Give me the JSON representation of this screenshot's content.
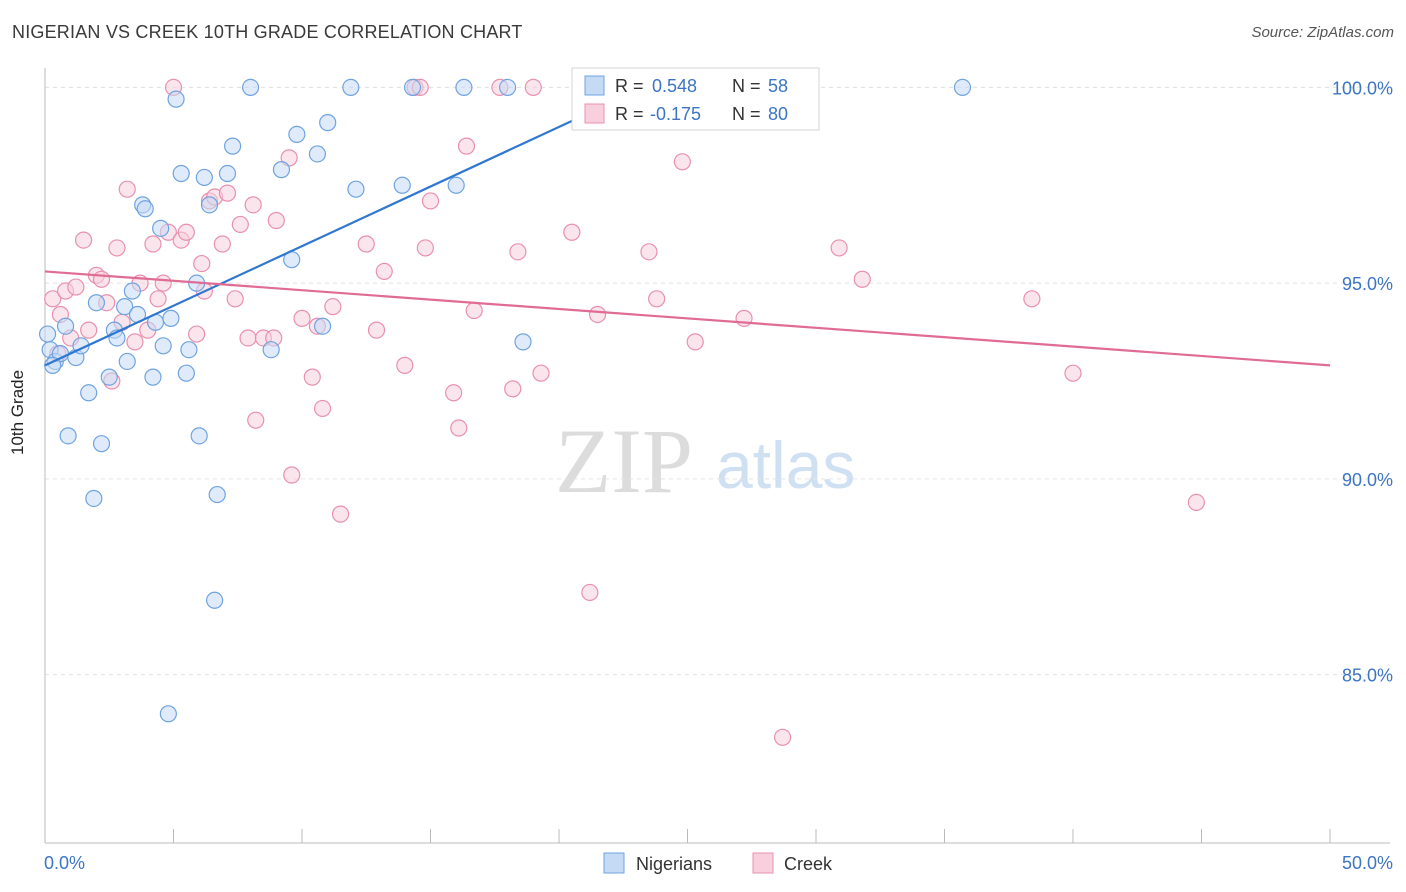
{
  "title": "NIGERIAN VS CREEK 10TH GRADE CORRELATION CHART",
  "source": "Source: ZipAtlas.com",
  "watermark": {
    "zip": "ZIP",
    "atlas": "atlas"
  },
  "colors": {
    "blue": "#6fa3e0",
    "blue_fill": "#c5dbf5",
    "blue_line": "#2f77d0",
    "pink": "#e890b0",
    "pink_fill": "#f7cfdd",
    "pink_line": "#e06b94",
    "axis_text": "#3c75c4",
    "grid": "#e3e3e3"
  },
  "legend": [
    {
      "r_label": "R =",
      "r_value": "0.548",
      "n_label": "N =",
      "n_value": "58"
    },
    {
      "r_label": "R =",
      "r_value": "-0.175",
      "n_label": "N =",
      "n_value": "80"
    }
  ],
  "bottom_legend": [
    "Nigerians",
    "Creek"
  ],
  "chart_data": {
    "type": "scatter",
    "title": "NIGERIAN VS CREEK 10TH GRADE CORRELATION CHART",
    "xlabel": "",
    "ylabel": "10th Grade",
    "xlim": [
      0,
      50
    ],
    "ylim": [
      80.7,
      100.7
    ],
    "x_tick_labels": [
      "0.0%",
      "50.0%"
    ],
    "y_ticks": [
      85,
      90,
      95,
      100
    ],
    "y_tick_labels": [
      "85.0%",
      "90.0%",
      "95.0%",
      "100.0%"
    ],
    "grid": "horizontal dashed",
    "legend_position": "top-center",
    "series": [
      {
        "name": "Nigerians",
        "trend": {
          "x": [
            0.0,
            24.3
          ],
          "y": [
            92.9,
            100.3
          ]
        },
        "points": [
          [
            0.2,
            93.3
          ],
          [
            0.4,
            93.0
          ],
          [
            0.6,
            93.2
          ],
          [
            0.8,
            93.9
          ],
          [
            0.9,
            91.1
          ],
          [
            1.2,
            93.1
          ],
          [
            1.4,
            93.4
          ],
          [
            1.7,
            92.2
          ],
          [
            1.9,
            89.5
          ],
          [
            2.0,
            94.5
          ],
          [
            2.2,
            90.9
          ],
          [
            2.5,
            92.6
          ],
          [
            2.7,
            93.8
          ],
          [
            2.8,
            93.6
          ],
          [
            3.1,
            94.4
          ],
          [
            3.2,
            93.0
          ],
          [
            3.4,
            94.8
          ],
          [
            3.6,
            94.2
          ],
          [
            3.8,
            97.0
          ],
          [
            3.9,
            96.9
          ],
          [
            4.2,
            92.6
          ],
          [
            4.3,
            94.0
          ],
          [
            4.5,
            96.4
          ],
          [
            4.6,
            93.4
          ],
          [
            4.8,
            84.0
          ],
          [
            4.9,
            94.1
          ],
          [
            5.1,
            99.7
          ],
          [
            5.3,
            97.8
          ],
          [
            5.5,
            92.7
          ],
          [
            5.6,
            93.3
          ],
          [
            5.9,
            95.0
          ],
          [
            6.0,
            91.1
          ],
          [
            6.2,
            97.7
          ],
          [
            6.4,
            97.0
          ],
          [
            6.6,
            86.9
          ],
          [
            6.7,
            89.6
          ],
          [
            7.1,
            97.8
          ],
          [
            7.3,
            98.5
          ],
          [
            8.0,
            100.0
          ],
          [
            8.8,
            93.3
          ],
          [
            9.2,
            97.9
          ],
          [
            9.6,
            95.6
          ],
          [
            9.8,
            98.8
          ],
          [
            10.6,
            98.3
          ],
          [
            10.8,
            93.9
          ],
          [
            11.0,
            99.1
          ],
          [
            11.9,
            100.0
          ],
          [
            12.1,
            97.4
          ],
          [
            13.9,
            97.5
          ],
          [
            14.3,
            100.0
          ],
          [
            16.0,
            97.5
          ],
          [
            16.3,
            100.0
          ],
          [
            18.0,
            100.0
          ],
          [
            18.6,
            93.5
          ],
          [
            24.5,
            100.0
          ],
          [
            35.7,
            100.0
          ],
          [
            0.1,
            93.7
          ],
          [
            0.3,
            92.9
          ]
        ]
      },
      {
        "name": "Creek",
        "trend": {
          "x": [
            0.0,
            50.0
          ],
          "y": [
            95.3,
            92.9
          ]
        },
        "points": [
          [
            0.3,
            94.6
          ],
          [
            0.5,
            93.2
          ],
          [
            0.6,
            94.2
          ],
          [
            0.8,
            94.8
          ],
          [
            1.0,
            93.6
          ],
          [
            1.2,
            94.9
          ],
          [
            1.5,
            96.1
          ],
          [
            1.7,
            93.8
          ],
          [
            2.0,
            95.2
          ],
          [
            2.2,
            95.1
          ],
          [
            2.4,
            94.5
          ],
          [
            2.6,
            92.5
          ],
          [
            2.8,
            95.9
          ],
          [
            3.0,
            94.0
          ],
          [
            3.2,
            97.4
          ],
          [
            3.5,
            93.5
          ],
          [
            3.7,
            95.0
          ],
          [
            4.0,
            93.8
          ],
          [
            4.2,
            96.0
          ],
          [
            4.4,
            94.6
          ],
          [
            4.6,
            95.0
          ],
          [
            4.8,
            96.3
          ],
          [
            5.0,
            100.0
          ],
          [
            5.3,
            96.1
          ],
          [
            5.5,
            96.3
          ],
          [
            5.9,
            93.7
          ],
          [
            6.1,
            95.5
          ],
          [
            6.2,
            94.8
          ],
          [
            6.4,
            97.1
          ],
          [
            6.6,
            97.2
          ],
          [
            6.9,
            96.0
          ],
          [
            7.1,
            97.3
          ],
          [
            7.4,
            94.6
          ],
          [
            7.6,
            96.5
          ],
          [
            7.9,
            93.6
          ],
          [
            8.1,
            97.0
          ],
          [
            8.2,
            91.5
          ],
          [
            8.5,
            93.6
          ],
          [
            8.9,
            93.6
          ],
          [
            9.0,
            96.6
          ],
          [
            9.5,
            98.2
          ],
          [
            9.6,
            90.1
          ],
          [
            10.0,
            94.1
          ],
          [
            10.4,
            92.6
          ],
          [
            10.6,
            93.9
          ],
          [
            10.8,
            91.8
          ],
          [
            11.2,
            94.4
          ],
          [
            11.5,
            89.1
          ],
          [
            12.5,
            96.0
          ],
          [
            12.9,
            93.8
          ],
          [
            13.2,
            95.3
          ],
          [
            14.0,
            92.9
          ],
          [
            14.4,
            100.0
          ],
          [
            14.8,
            95.9
          ],
          [
            15.0,
            97.1
          ],
          [
            15.9,
            92.2
          ],
          [
            16.1,
            91.3
          ],
          [
            16.4,
            98.5
          ],
          [
            16.7,
            94.3
          ],
          [
            18.2,
            92.3
          ],
          [
            18.4,
            95.8
          ],
          [
            19.0,
            100.0
          ],
          [
            19.3,
            92.7
          ],
          [
            20.5,
            96.3
          ],
          [
            21.2,
            87.1
          ],
          [
            21.5,
            94.2
          ],
          [
            23.5,
            95.8
          ],
          [
            23.8,
            94.6
          ],
          [
            24.6,
            100.0
          ],
          [
            24.8,
            98.1
          ],
          [
            25.3,
            93.5
          ],
          [
            27.2,
            94.1
          ],
          [
            28.7,
            83.4
          ],
          [
            30.9,
            95.9
          ],
          [
            31.8,
            95.1
          ],
          [
            38.4,
            94.6
          ],
          [
            40.0,
            92.7
          ],
          [
            44.8,
            89.4
          ],
          [
            17.7,
            100.0
          ],
          [
            14.6,
            100.0
          ]
        ]
      }
    ]
  }
}
